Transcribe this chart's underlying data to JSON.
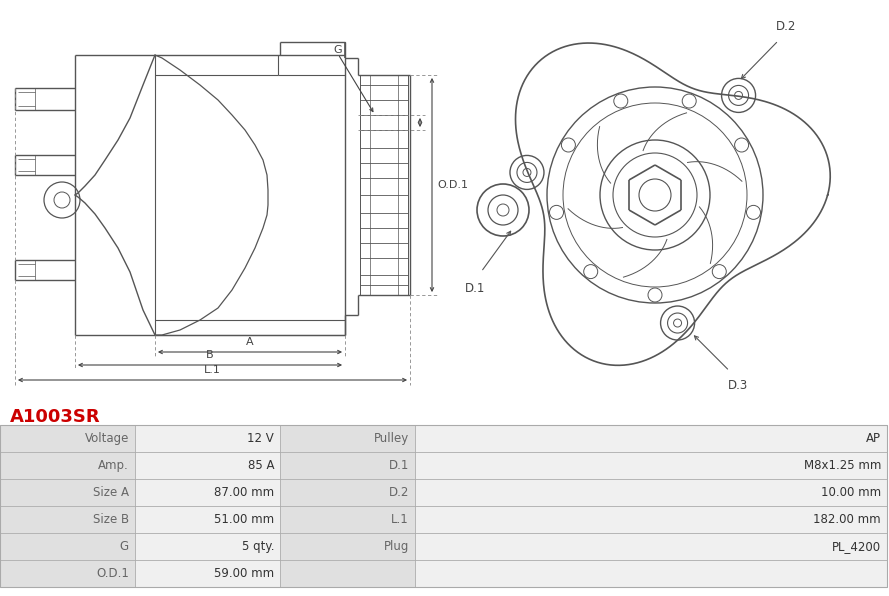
{
  "title": "A1003SR",
  "title_color": "#cc0000",
  "bg_color": "#ffffff",
  "table_rows": [
    [
      "Voltage",
      "12 V",
      "Pulley",
      "AP"
    ],
    [
      "Amp.",
      "85 A",
      "D.1",
      "M8x1.25 mm"
    ],
    [
      "Size A",
      "87.00 mm",
      "D.2",
      "10.00 mm"
    ],
    [
      "Size B",
      "51.00 mm",
      "L.1",
      "182.00 mm"
    ],
    [
      "G",
      "5 qty.",
      "Plug",
      "PL_4200"
    ],
    [
      "O.D.1",
      "59.00 mm",
      "",
      ""
    ]
  ],
  "label_color": "#666666",
  "value_color": "#333333",
  "row_bg_label": "#e0e0e0",
  "row_bg_value": "#f0f0f0",
  "line_color": "#555555"
}
